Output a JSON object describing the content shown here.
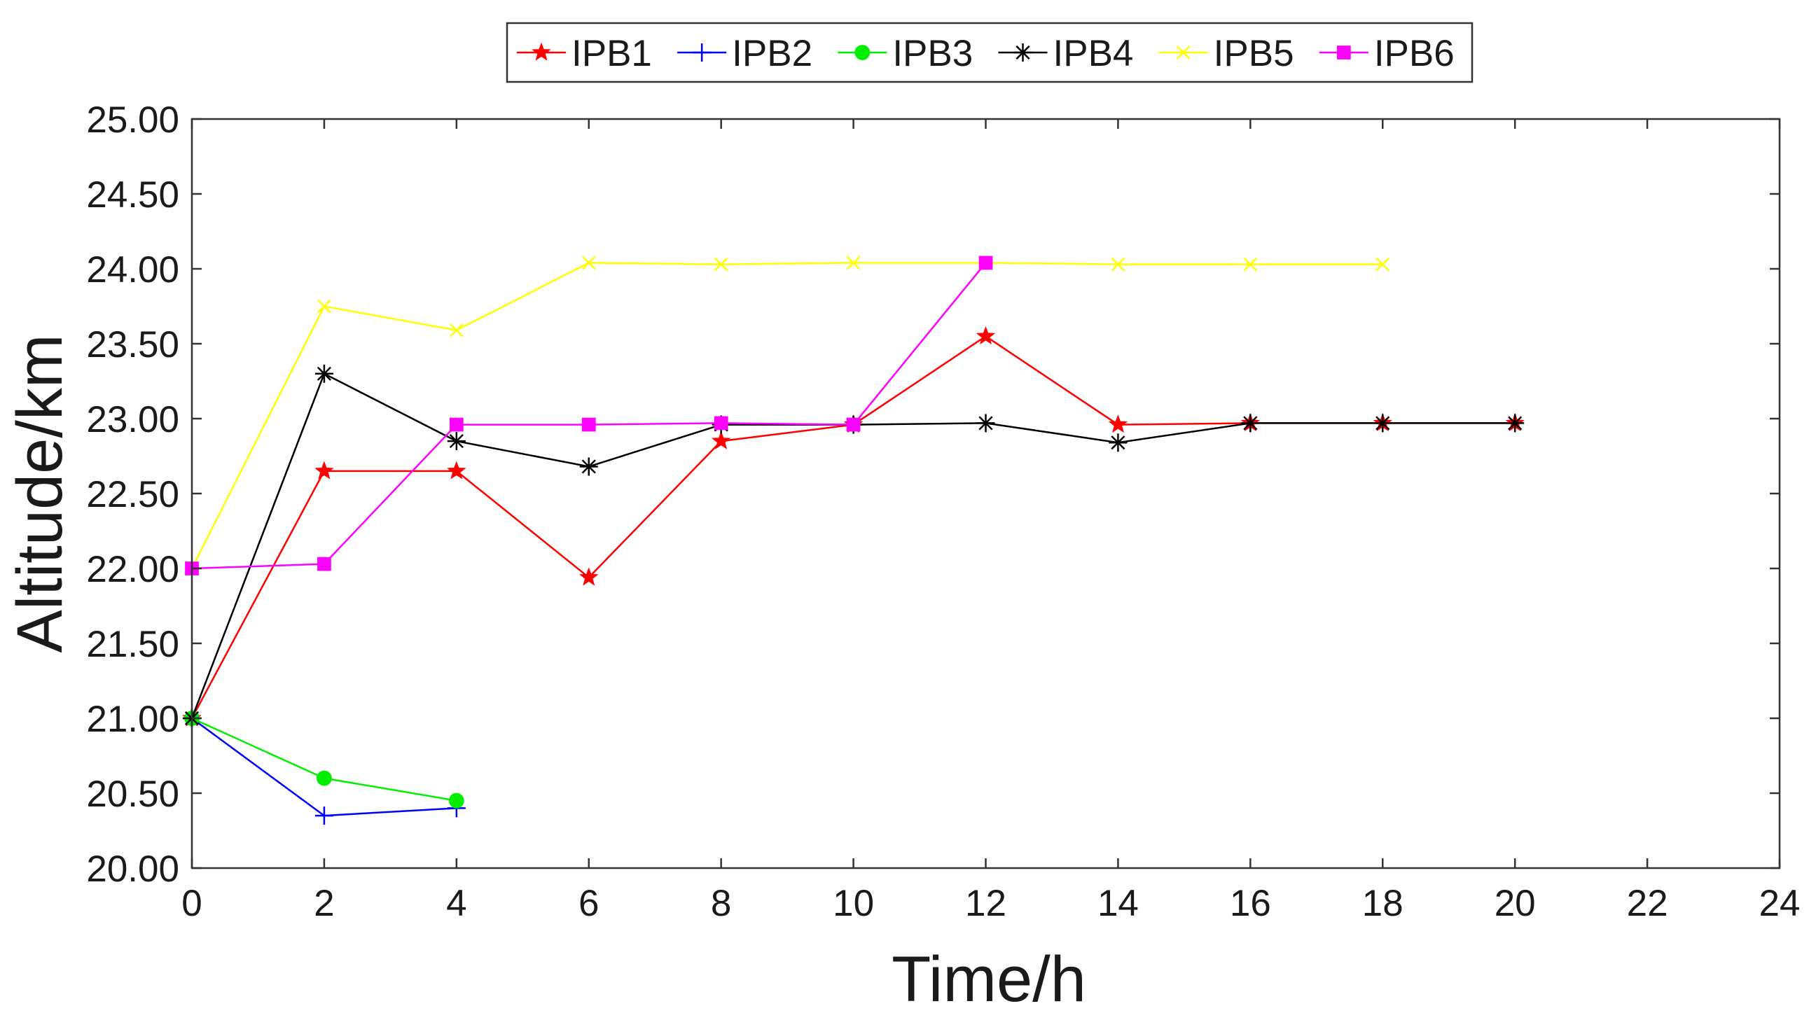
{
  "chart_data": {
    "type": "line",
    "title": "",
    "xlabel": "Time/h",
    "ylabel": "Altitude/km",
    "xlim": [
      0,
      24
    ],
    "ylim": [
      20.0,
      25.0
    ],
    "xticks": [
      "0",
      "2",
      "4",
      "6",
      "8",
      "10",
      "12",
      "14",
      "16",
      "18",
      "20",
      "22",
      "24"
    ],
    "yticks": [
      "20.00",
      "20.50",
      "21.00",
      "21.50",
      "22.00",
      "22.50",
      "23.00",
      "23.50",
      "24.00",
      "24.50",
      "25.00"
    ],
    "grid": false,
    "legend_position": "top-center",
    "series": [
      {
        "name": "IPB1",
        "color": "#ff0000",
        "marker": "star",
        "x": [
          0,
          2,
          4,
          6,
          8,
          10,
          12,
          14,
          16,
          18,
          20
        ],
        "y": [
          21.0,
          22.65,
          22.65,
          21.94,
          22.85,
          22.96,
          23.55,
          22.96,
          22.97,
          22.97,
          22.97
        ]
      },
      {
        "name": "IPB2",
        "color": "#0000ff",
        "marker": "plus",
        "x": [
          0,
          2,
          4
        ],
        "y": [
          21.0,
          20.35,
          20.4
        ]
      },
      {
        "name": "IPB3",
        "color": "#00ee00",
        "marker": "circle",
        "x": [
          0,
          2,
          4
        ],
        "y": [
          21.0,
          20.6,
          20.45
        ]
      },
      {
        "name": "IPB4",
        "color": "#000000",
        "marker": "asterisk",
        "x": [
          0,
          2,
          4,
          6,
          8,
          10,
          12,
          14,
          16,
          18,
          20
        ],
        "y": [
          21.0,
          23.3,
          22.85,
          22.68,
          22.96,
          22.96,
          22.97,
          22.84,
          22.97,
          22.97,
          22.97
        ]
      },
      {
        "name": "IPB5",
        "color": "#ffff00",
        "marker": "x",
        "x": [
          0,
          2,
          4,
          6,
          8,
          10,
          12,
          14,
          16,
          18
        ],
        "y": [
          22.0,
          23.75,
          23.59,
          24.04,
          24.03,
          24.04,
          24.04,
          24.03,
          24.03,
          24.03
        ]
      },
      {
        "name": "IPB6",
        "color": "#ff00ff",
        "marker": "square",
        "x": [
          0,
          2,
          4,
          6,
          8,
          10,
          12
        ],
        "y": [
          22.0,
          22.03,
          22.96,
          22.96,
          22.97,
          22.96,
          24.04
        ]
      }
    ]
  }
}
